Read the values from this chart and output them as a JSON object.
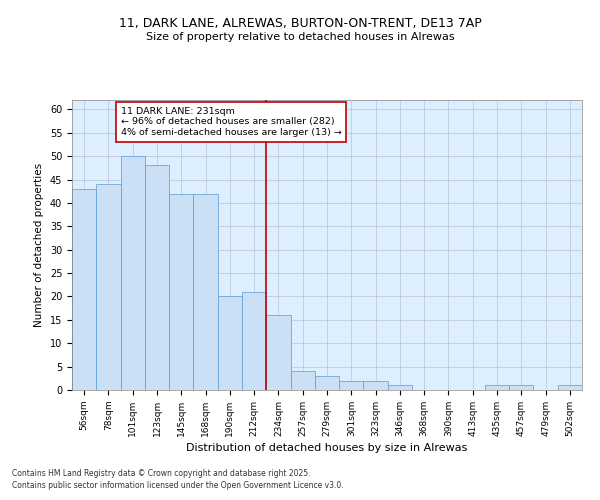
{
  "title1": "11, DARK LANE, ALREWAS, BURTON-ON-TRENT, DE13 7AP",
  "title2": "Size of property relative to detached houses in Alrewas",
  "xlabel": "Distribution of detached houses by size in Alrewas",
  "ylabel": "Number of detached properties",
  "categories": [
    "56sqm",
    "78sqm",
    "101sqm",
    "123sqm",
    "145sqm",
    "168sqm",
    "190sqm",
    "212sqm",
    "234sqm",
    "257sqm",
    "279sqm",
    "301sqm",
    "323sqm",
    "346sqm",
    "368sqm",
    "390sqm",
    "413sqm",
    "435sqm",
    "457sqm",
    "479sqm",
    "502sqm"
  ],
  "values": [
    43,
    44,
    50,
    48,
    42,
    42,
    20,
    21,
    16,
    4,
    3,
    2,
    2,
    1,
    0,
    0,
    0,
    1,
    1,
    0,
    1
  ],
  "bar_color": "#cce0f5",
  "bar_edge_color": "#5b9bd5",
  "vline_idx": 8,
  "vline_color": "#c00000",
  "annotation_title": "11 DARK LANE: 231sqm",
  "annotation_line1": "← 96% of detached houses are smaller (282)",
  "annotation_line2": "4% of semi-detached houses are larger (13) →",
  "annotation_box_color": "#c00000",
  "background_color": "#ddeeff",
  "grid_color": "#b0b8d0",
  "ylim": [
    0,
    62
  ],
  "yticks": [
    0,
    5,
    10,
    15,
    20,
    25,
    30,
    35,
    40,
    45,
    50,
    55,
    60
  ],
  "footer1": "Contains HM Land Registry data © Crown copyright and database right 2025.",
  "footer2": "Contains public sector information licensed under the Open Government Licence v3.0."
}
